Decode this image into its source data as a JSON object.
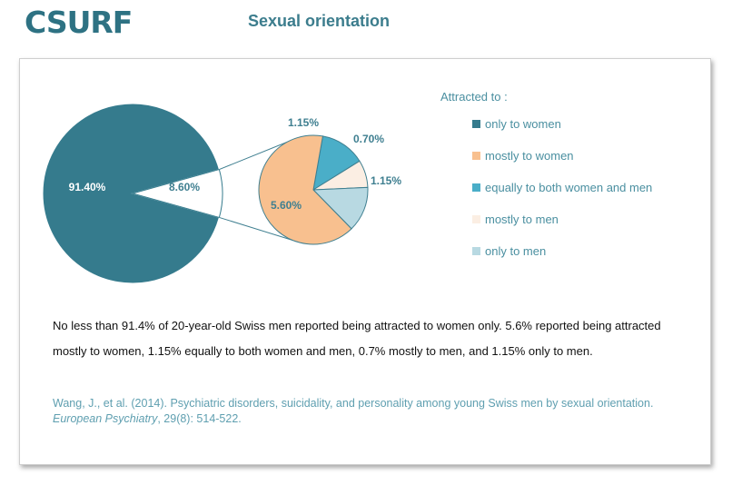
{
  "header": {
    "logo_text": "CSURF",
    "title": "Sexual  orientation"
  },
  "legend": {
    "title": "Attracted to :",
    "items": [
      {
        "label": "only to women",
        "color": "#357b8d"
      },
      {
        "label": "mostly to women",
        "color": "#f8c08f"
      },
      {
        "label": "equally to both women and men",
        "color": "#4aaec8"
      },
      {
        "label": "mostly to men",
        "color": "#fbeee3"
      },
      {
        "label": "only to men",
        "color": "#b8d9e2"
      }
    ]
  },
  "chart_data": [
    {
      "type": "pie",
      "categories": [
        "only to women",
        "other"
      ],
      "values": [
        91.4,
        8.6
      ],
      "labels": [
        "91.40%",
        "8.60%"
      ],
      "colors": [
        "#357b8d",
        "#ffffff"
      ]
    },
    {
      "type": "pie",
      "categories": [
        "mostly to women",
        "equally to both women and men",
        "mostly to men",
        "only to men"
      ],
      "values": [
        5.6,
        1.15,
        0.7,
        1.15
      ],
      "labels": [
        "5.60%",
        "1.15%",
        "0.70%",
        "1.15%"
      ],
      "colors": [
        "#f8c08f",
        "#4aaec8",
        "#fbeee3",
        "#b8d9e2"
      ]
    }
  ],
  "summary": {
    "text": "No less than 91.4% of 20-year-old  Swiss men reported being attracted to women only. 5.6% reported being attracted mostly to women, 1.15% equally to both women and men, 0.7% mostly to men, and 1.15% only to men."
  },
  "citation": {
    "authors": "Wang, J., et al. (2014).  Psychiatric disorders, suicidality,  and personality among young Swiss men by sexual orientation.",
    "journal": "European Psychiatry",
    "details": ", 29(8): 514-522."
  }
}
